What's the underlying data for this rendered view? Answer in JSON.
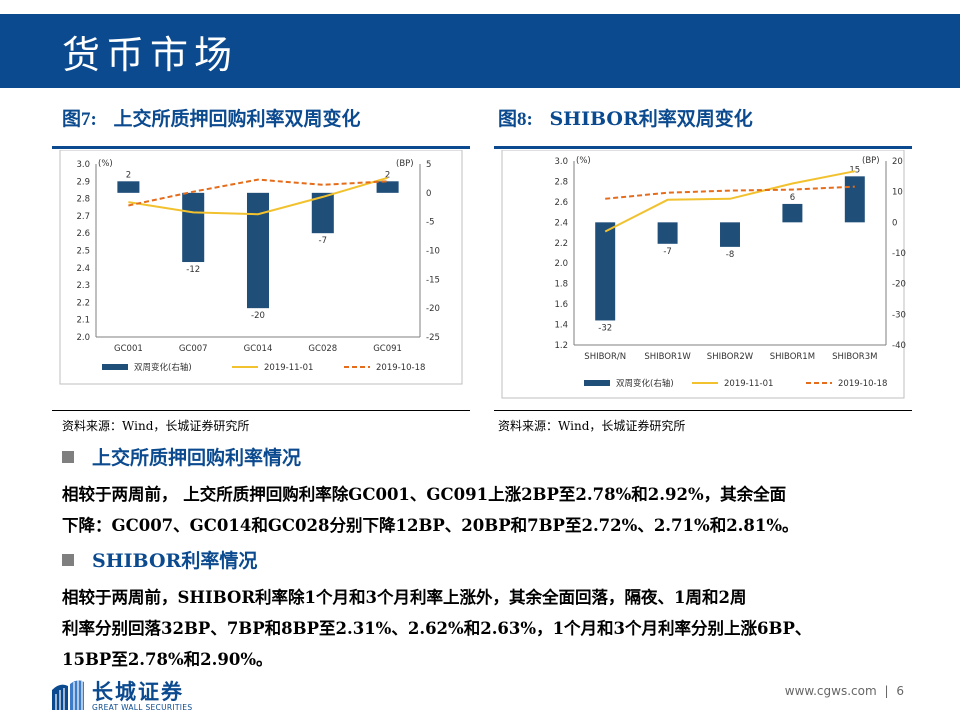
{
  "page": {
    "title": "货币市场",
    "footer_url": "www.cgws.com",
    "page_sep": "|",
    "page_number": "6",
    "logo_cn": "长城证券",
    "logo_en": "GREAT WALL SECURITIES"
  },
  "fig7": {
    "title_prefix": "图7:",
    "title_text": "上交所质押回购利率双周变化",
    "source": "资料来源：Wind，长城证券研究所"
  },
  "fig8": {
    "title_prefix": "图8:",
    "title_text": "SHIBOR利率双周变化",
    "source": "资料来源：Wind，长城证券研究所"
  },
  "section1": {
    "heading": "上交所质押回购利率情况",
    "line1": "相较于两周前， 上交所质押回购利率除GC001、GC091上涨2BP至2.78%和2.92%，其余全面",
    "line2": "下降：GC007、GC014和GC028分别下降12BP、20BP和7BP至2.72%、2.71%和2.81%。"
  },
  "section2": {
    "heading": "SHIBOR利率情况",
    "line1": "相较于两周前，SHIBOR利率除1个月和3个月利率上涨外，其余全面回落，隔夜、1周和2周",
    "line2": "利率分别回落32BP、7BP和8BP至2.31%、2.62%和2.63%，1个月和3个月利率分别上涨6BP、",
    "line3": "15BP至2.78%和2.90%。"
  },
  "chart_data": [
    {
      "type": "bar",
      "categories": [
        "GC001",
        "GC007",
        "GC014",
        "GC028",
        "GC091"
      ],
      "left_axis_label": "(%)",
      "right_axis_label": "(BP)",
      "left_ylim": [
        2.0,
        3.0
      ],
      "left_ticks": [
        "3.0",
        "2.9",
        "2.8",
        "2.7",
        "2.6",
        "2.5",
        "2.4",
        "2.3",
        "2.2",
        "2.1",
        "2.0"
      ],
      "right_ylim": [
        -25,
        5
      ],
      "right_ticks": [
        "5",
        "0",
        "-5",
        "-10",
        "-15",
        "-20",
        "-25"
      ],
      "series": [
        {
          "name": "双周变化(右轴)",
          "kind": "bar",
          "axis": "right",
          "color": "#1f4e79",
          "values": [
            2,
            -12,
            -20,
            -7,
            2
          ]
        },
        {
          "name": "2019-11-01",
          "kind": "line",
          "axis": "left",
          "color": "#f2c12e",
          "values": [
            2.78,
            2.72,
            2.71,
            2.81,
            2.92
          ]
        },
        {
          "name": "2019-10-18",
          "kind": "dashed",
          "axis": "left",
          "color": "#e46c1a",
          "values": [
            2.76,
            2.84,
            2.91,
            2.88,
            2.9
          ]
        }
      ],
      "grid": false,
      "legend_position": "bottom"
    },
    {
      "type": "bar",
      "categories": [
        "SHIBOR/N",
        "SHIBOR1W",
        "SHIBOR2W",
        "SHIBOR1M",
        "SHIBOR3M"
      ],
      "left_axis_label": "(%)",
      "right_axis_label": "(BP)",
      "left_ylim": [
        1.2,
        3.0
      ],
      "left_ticks": [
        "3.0",
        "2.8",
        "2.6",
        "2.4",
        "2.2",
        "2.0",
        "1.8",
        "1.6",
        "1.4",
        "1.2"
      ],
      "right_ylim": [
        -40,
        20
      ],
      "right_ticks": [
        "20",
        "10",
        "0",
        "-10",
        "-20",
        "-30",
        "-40"
      ],
      "series": [
        {
          "name": "双周变化(右轴)",
          "kind": "bar",
          "axis": "right",
          "color": "#1f4e79",
          "values": [
            -32,
            -7,
            -8,
            6,
            15
          ]
        },
        {
          "name": "2019-11-01",
          "kind": "line",
          "axis": "left",
          "color": "#f2c12e",
          "values": [
            2.31,
            2.62,
            2.63,
            2.78,
            2.9
          ]
        },
        {
          "name": "2019-10-18",
          "kind": "dashed",
          "axis": "left",
          "color": "#e46c1a",
          "values": [
            2.63,
            2.69,
            2.71,
            2.72,
            2.75
          ]
        }
      ],
      "grid": false,
      "legend_position": "bottom"
    }
  ]
}
